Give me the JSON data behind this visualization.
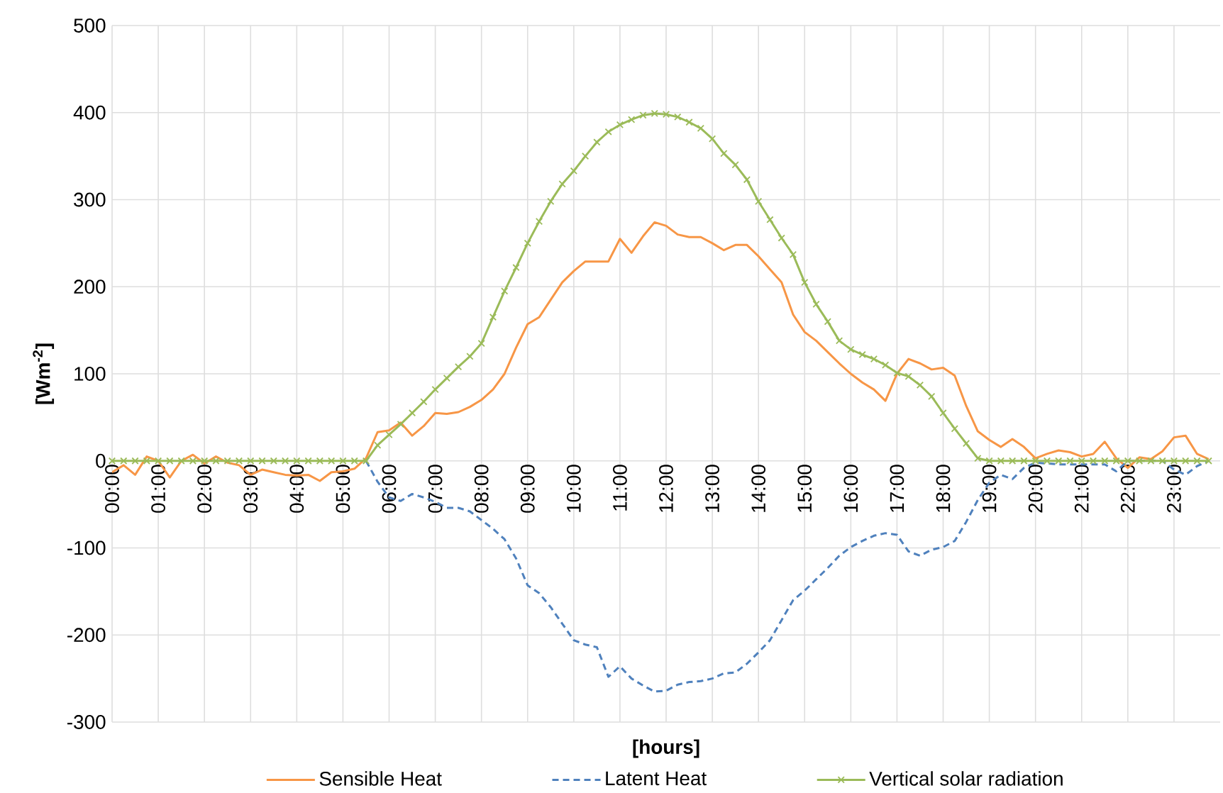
{
  "chart_data": {
    "type": "line",
    "xlabel": "[hours]",
    "ylabel": "[Wm$^{-2}$]",
    "x": [
      0,
      0.25,
      0.5,
      0.75,
      1,
      1.25,
      1.5,
      1.75,
      2,
      2.25,
      2.5,
      2.75,
      3,
      3.25,
      3.5,
      3.75,
      4,
      4.25,
      4.5,
      4.75,
      5,
      5.25,
      5.5,
      5.75,
      6,
      6.25,
      6.5,
      6.75,
      7,
      7.25,
      7.5,
      7.75,
      8,
      8.25,
      8.5,
      8.75,
      9,
      9.25,
      9.5,
      9.75,
      10,
      10.25,
      10.5,
      10.75,
      11,
      11.25,
      11.5,
      11.75,
      12,
      12.25,
      12.5,
      12.75,
      13,
      13.25,
      13.5,
      13.75,
      14,
      14.25,
      14.5,
      14.75,
      15,
      15.25,
      15.5,
      15.75,
      16,
      16.25,
      16.5,
      16.75,
      17,
      17.25,
      17.5,
      17.75,
      18,
      18.25,
      18.5,
      18.75,
      19,
      19.25,
      19.5,
      19.75,
      20,
      20.25,
      20.5,
      20.75,
      21,
      21.25,
      21.5,
      21.75,
      22,
      22.25,
      22.5,
      22.75,
      23,
      23.25,
      23.5,
      23.75
    ],
    "series": [
      {
        "name": "Sensible Heat",
        "color": "#f79646",
        "line_style": "solid",
        "marker": "none",
        "values": [
          -13,
          -5,
          -16,
          5,
          0,
          -19,
          0,
          7,
          -3,
          5,
          -2,
          -5,
          -16,
          -10,
          -13,
          -16,
          -17,
          -16,
          -23,
          -13,
          -12,
          -9,
          3,
          33,
          35,
          44,
          29,
          40,
          55,
          54,
          56,
          62,
          70,
          82,
          100,
          130,
          157,
          165,
          185,
          205,
          218,
          229,
          229,
          229,
          255,
          239,
          258,
          274,
          270,
          260,
          257,
          257,
          250,
          242,
          248,
          248,
          235,
          220,
          205,
          168,
          148,
          138,
          125,
          112,
          100,
          90,
          82,
          69,
          100,
          117,
          112,
          105,
          107,
          98,
          63,
          34,
          24,
          16,
          25,
          16,
          3,
          8,
          12,
          10,
          5,
          8,
          22,
          3,
          -8,
          4,
          2,
          11,
          27,
          29,
          8,
          2
        ]
      },
      {
        "name": "Latent Heat",
        "color": "#4f81bd",
        "line_style": "dashed",
        "marker": "none",
        "values": [
          null,
          null,
          null,
          null,
          null,
          null,
          null,
          null,
          null,
          null,
          null,
          null,
          null,
          null,
          null,
          null,
          null,
          null,
          null,
          null,
          null,
          null,
          0,
          -24,
          -42,
          -46,
          -38,
          -42,
          -47,
          -54,
          -54,
          -58,
          -68,
          -78,
          -90,
          -112,
          -143,
          -152,
          -168,
          -187,
          -206,
          -211,
          -214,
          -248,
          -236,
          -250,
          -258,
          -265,
          -264,
          -257,
          -254,
          -253,
          -250,
          -244,
          -243,
          -233,
          -220,
          -206,
          -183,
          -160,
          -149,
          -136,
          -123,
          -109,
          -99,
          -92,
          -86,
          -83,
          -85,
          -104,
          -109,
          -102,
          -99,
          -92,
          -70,
          -45,
          -25,
          -16,
          -21,
          -8,
          -2,
          -3,
          -4,
          -4,
          -4,
          -4,
          -4,
          -12,
          0,
          0,
          0,
          0,
          -10,
          -16,
          -6,
          0
        ]
      },
      {
        "name": "Vertical solar radiation",
        "color": "#9bbb59",
        "line_style": "solid",
        "marker": "cross",
        "values": [
          0,
          0,
          0,
          0,
          0,
          0,
          0,
          0,
          0,
          0,
          0,
          0,
          0,
          0,
          0,
          0,
          0,
          0,
          0,
          0,
          0,
          0,
          0,
          18,
          30,
          42,
          55,
          68,
          82,
          95,
          108,
          120,
          135,
          165,
          195,
          222,
          250,
          275,
          298,
          318,
          333,
          350,
          366,
          378,
          386,
          392,
          397,
          399,
          398,
          395,
          389,
          382,
          370,
          353,
          340,
          323,
          298,
          277,
          256,
          237,
          205,
          180,
          160,
          138,
          128,
          122,
          117,
          110,
          101,
          97,
          87,
          74,
          55,
          37,
          20,
          3,
          0,
          0,
          0,
          0,
          0,
          0,
          0,
          0,
          0,
          0,
          0,
          0,
          0,
          0,
          0,
          0,
          0,
          0,
          0,
          0
        ]
      }
    ],
    "xlim": [
      0,
      24
    ],
    "xticks": [
      {
        "value": 0,
        "label": "00:00"
      },
      {
        "value": 1,
        "label": "01:00"
      },
      {
        "value": 2,
        "label": "02:00"
      },
      {
        "value": 3,
        "label": "03:00"
      },
      {
        "value": 4,
        "label": "04:00"
      },
      {
        "value": 5,
        "label": "05:00"
      },
      {
        "value": 6,
        "label": "06:00"
      },
      {
        "value": 7,
        "label": "07:00"
      },
      {
        "value": 8,
        "label": "08:00"
      },
      {
        "value": 9,
        "label": "09:00"
      },
      {
        "value": 10,
        "label": "10:00"
      },
      {
        "value": 11,
        "label": "11:00"
      },
      {
        "value": 12,
        "label": "12:00"
      },
      {
        "value": 13,
        "label": "13:00"
      },
      {
        "value": 14,
        "label": "14:00"
      },
      {
        "value": 15,
        "label": "15:00"
      },
      {
        "value": 16,
        "label": "16:00"
      },
      {
        "value": 17,
        "label": "17:00"
      },
      {
        "value": 18,
        "label": "18:00"
      },
      {
        "value": 19,
        "label": "19:00"
      },
      {
        "value": 20,
        "label": "20:00"
      },
      {
        "value": 21,
        "label": "21:00"
      },
      {
        "value": 22,
        "label": "22:00"
      },
      {
        "value": 23,
        "label": "23:00"
      }
    ],
    "ylim": [
      -300,
      500
    ],
    "yticks": [
      -300,
      -200,
      -100,
      0,
      100,
      200,
      300,
      400,
      500
    ],
    "grid": true,
    "legend": "bottom"
  }
}
